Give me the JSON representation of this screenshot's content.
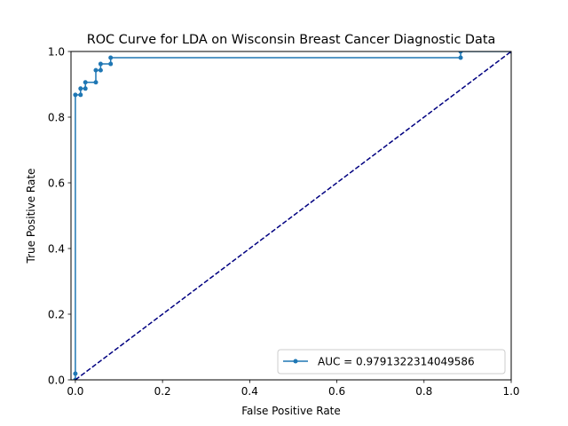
{
  "chart_data": {
    "type": "line",
    "title": "ROC Curve for LDA on Wisconsin Breast Cancer Diagnostic Data",
    "xlabel": "False Positive Rate",
    "ylabel": "True Positive Rate",
    "xlim": [
      -0.01,
      1.0
    ],
    "ylim": [
      0.0,
      1.0
    ],
    "xticks": [
      0.0,
      0.2,
      0.4,
      0.6,
      0.8,
      1.0
    ],
    "xtick_labels": [
      "0.0",
      "0.2",
      "0.4",
      "0.6",
      "0.8",
      "1.0"
    ],
    "yticks": [
      0.0,
      0.2,
      0.4,
      0.6,
      0.8,
      1.0
    ],
    "ytick_labels": [
      "0.0",
      "0.2",
      "0.4",
      "0.6",
      "0.8",
      "1.0"
    ],
    "grid": false,
    "legend_position": "lower right",
    "series": [
      {
        "name": "AUC = 0.9791322314049586",
        "color": "#1f77b4",
        "marker": "point",
        "x": [
          0.0,
          0.0,
          0.0,
          0.012,
          0.012,
          0.023,
          0.023,
          0.047,
          0.047,
          0.058,
          0.058,
          0.081,
          0.081,
          0.884,
          0.884,
          1.0
        ],
        "y": [
          0.0,
          0.019,
          0.868,
          0.868,
          0.887,
          0.887,
          0.906,
          0.906,
          0.943,
          0.943,
          0.962,
          0.962,
          0.981,
          0.981,
          1.0,
          1.0
        ]
      },
      {
        "name": "",
        "color": "#000080",
        "line_style": "dashed",
        "x": [
          0.0,
          1.0
        ],
        "y": [
          0.0,
          1.0
        ]
      }
    ]
  }
}
